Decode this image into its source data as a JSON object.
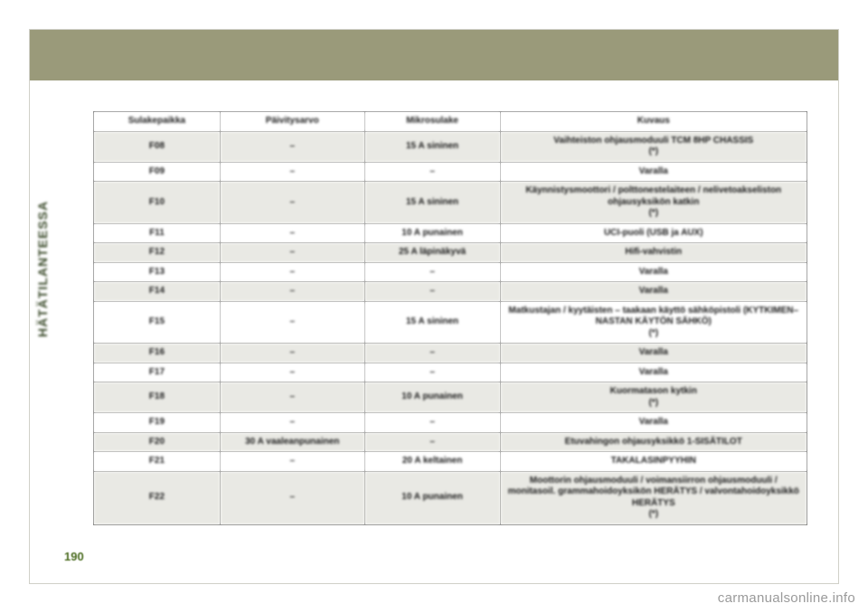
{
  "sidebar_label": "HÄTÄTILANTEESSA",
  "page_number": "190",
  "footer_link": "carmanualsonline.info",
  "table": {
    "headers": [
      "Sulakepaikka",
      "Päivitysarvo",
      "Mikrosulake",
      "Kuvaus"
    ],
    "rows": [
      [
        "F08",
        "–",
        "15 A sininen",
        "Vaihteiston ohjausmoduuli TCM 8HP CHASSIS\n(*)"
      ],
      [
        "F09",
        "–",
        "–",
        "Varalla"
      ],
      [
        "F10",
        "–",
        "15 A sininen",
        "Käynnistysmoottori / polttonestelaiteen / nelivetoakseliston ohjausyksikön katkin\n(*)"
      ],
      [
        "F11",
        "–",
        "10 A punainen",
        "UCI-puoli (USB ja AUX)"
      ],
      [
        "F12",
        "–",
        "25 A läpinäkyvä",
        "Hifi-vahvistin"
      ],
      [
        "F13",
        "–",
        "–",
        "Varalla"
      ],
      [
        "F14",
        "–",
        "–",
        "Varalla"
      ],
      [
        "F15",
        "–",
        "15 A sininen",
        "Matkustajan / kyytäisten – taakaan käyttö sähköpistoli (KYTKIMEN–NASTAN KÄYTÖN SÄHKÖ)\n(*)"
      ],
      [
        "F16",
        "–",
        "–",
        "Varalla"
      ],
      [
        "F17",
        "–",
        "–",
        "Varalla"
      ],
      [
        "F18",
        "–",
        "10 A punainen",
        "Kuormatason kytkin\n(*)"
      ],
      [
        "F19",
        "–",
        "–",
        "Varalla"
      ],
      [
        "F20",
        "30 A vaaleanpunainen",
        "–",
        "Etuvahingon ohjausyksikkö 1-SISÄTILOT"
      ],
      [
        "F21",
        "–",
        "20 A keltainen",
        "TAKALASINPYYHIN"
      ],
      [
        "F22",
        "–",
        "10 A punainen",
        "Moottorin ohjausmoduuli / voimansiirron ohjausmoduuli / monitasoil. grammahoidoyksikön HERÄTYS / valvontahoidoyksikkö HERÄTYS\n(*)"
      ]
    ]
  }
}
